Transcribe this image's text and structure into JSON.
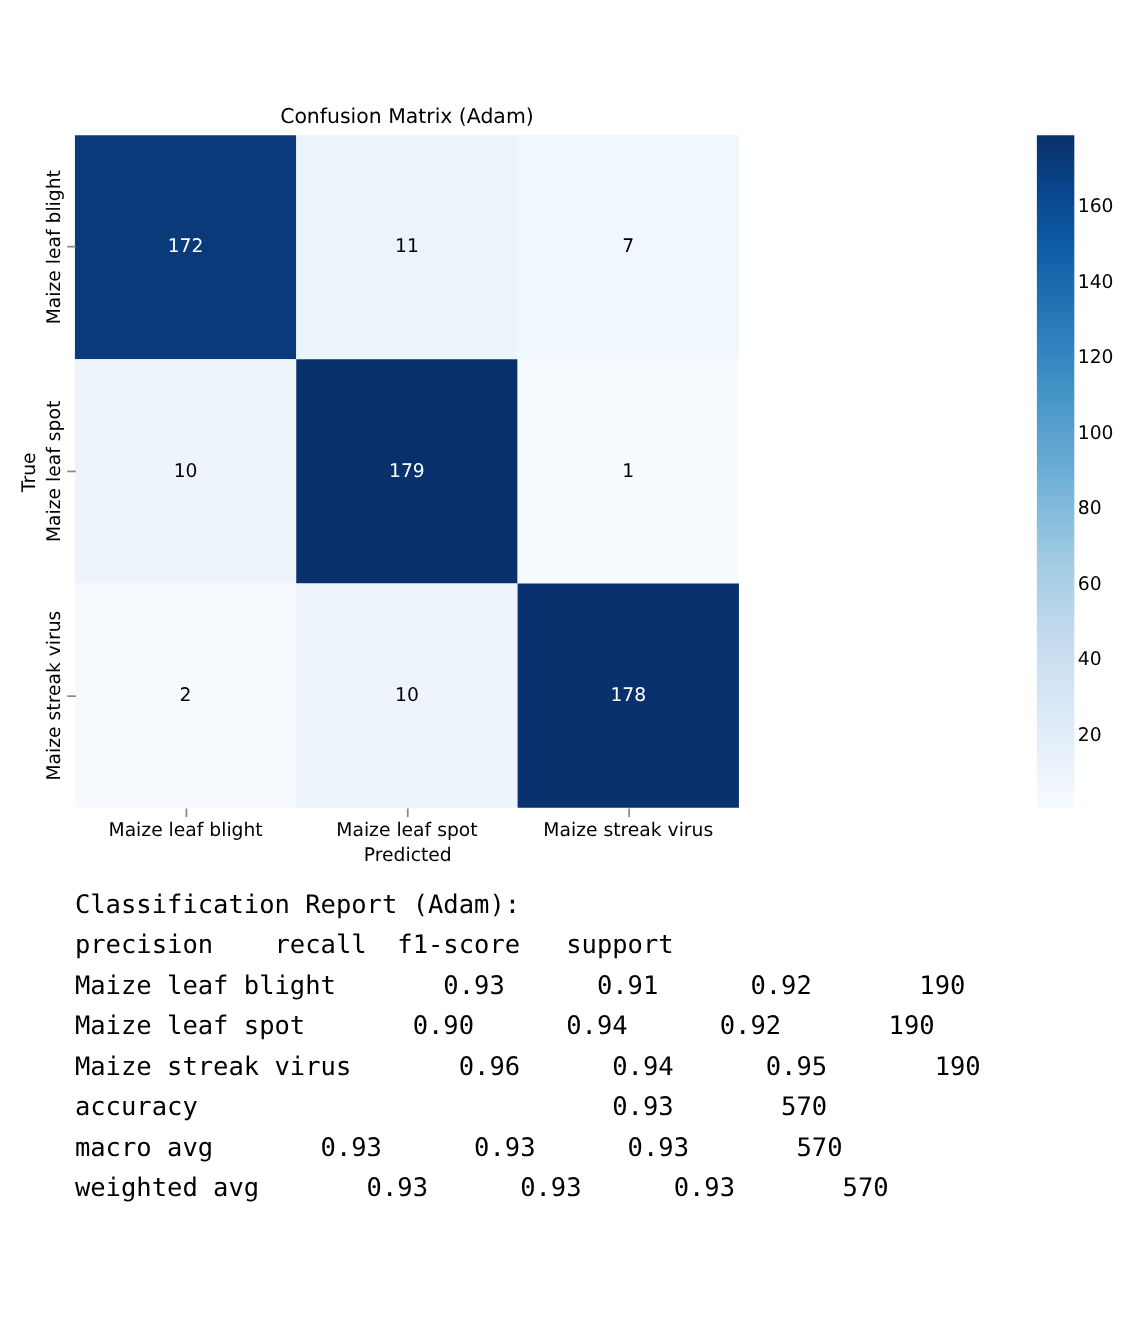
{
  "chart_data": {
    "type": "heatmap",
    "title": "Confusion Matrix (Adam)",
    "xlabel": "Predicted",
    "ylabel": "True",
    "categories": [
      "Maize leaf blight",
      "Maize leaf spot",
      "Maize streak virus"
    ],
    "y_categories": [
      "Maize leaf blight",
      "Maize leaf spot",
      "Maize streak virus"
    ],
    "cells": [
      [
        172,
        11,
        7
      ],
      [
        10,
        179,
        1
      ],
      [
        2,
        10,
        178
      ]
    ],
    "data_labels": true,
    "clim": [
      1,
      179
    ],
    "cticks": [
      20,
      40,
      60,
      80,
      100,
      120,
      140,
      160
    ],
    "annotations": [
      "Classification Report (Adam):",
      "                   precision    recall  f1-score   support",
      "Maize leaf blight       0.93      0.91      0.92       190",
      "  Maize leaf spot       0.90      0.94      0.92       190",
      "Maize streak virus       0.96      0.94      0.95       190",
      "         accuracy                           0.93       570",
      "        macro avg       0.93      0.93      0.93       570",
      "     weighted avg       0.93      0.93      0.93       570"
    ]
  }
}
